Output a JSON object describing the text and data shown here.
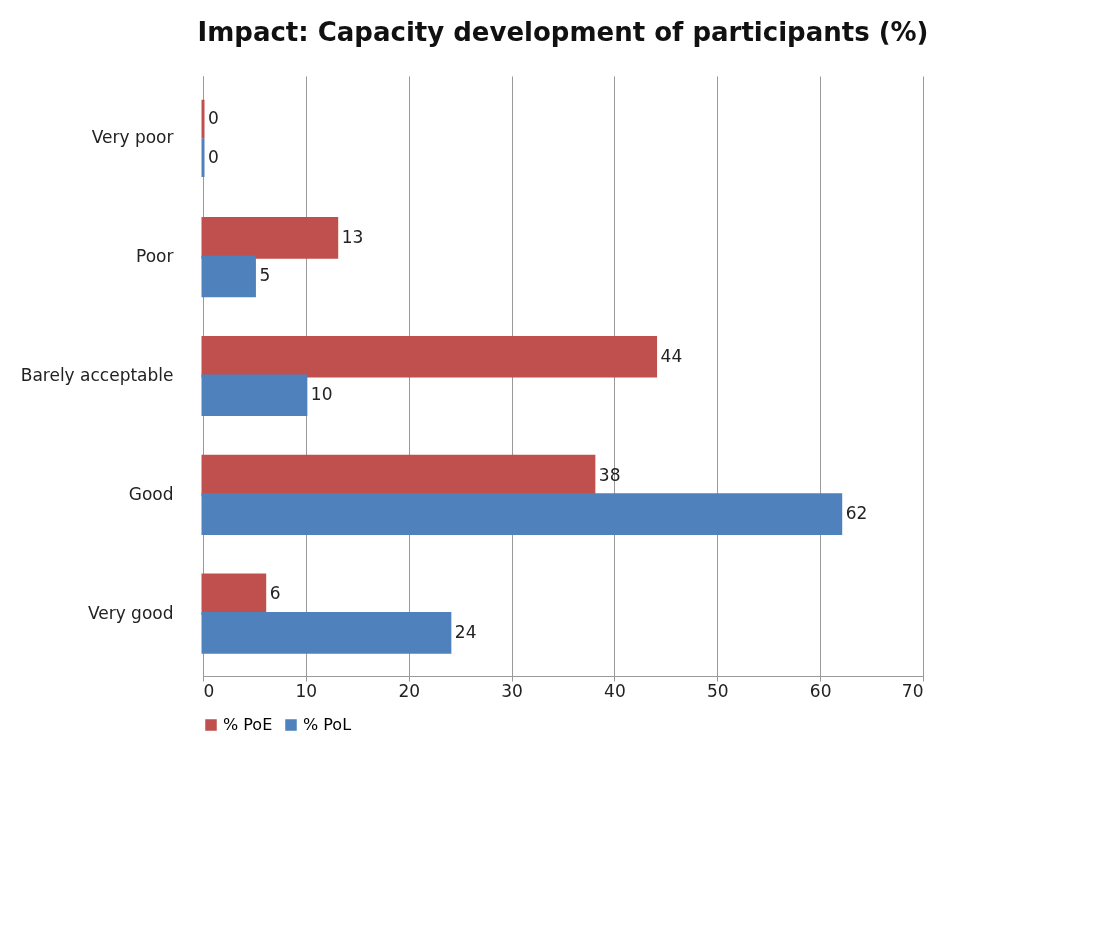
{
  "chart_data": {
    "type": "bar",
    "orientation": "horizontal",
    "title": "Impact: Capacity development of participants (%)",
    "categories": [
      "Very poor",
      "Poor",
      "Barely acceptable",
      "Good",
      "Very good"
    ],
    "series": [
      {
        "name": "% PoE",
        "color": "#c0504d",
        "values": [
          0,
          13,
          44,
          38,
          6
        ]
      },
      {
        "name": "% PoL",
        "color": "#4f81bd",
        "values": [
          0,
          5,
          10,
          62,
          24
        ]
      }
    ],
    "xlim": [
      0,
      70
    ],
    "xticks": [
      0,
      10,
      20,
      30,
      40,
      50,
      60,
      70
    ],
    "grid": "x",
    "legend": "bottom",
    "data_labels": true
  }
}
